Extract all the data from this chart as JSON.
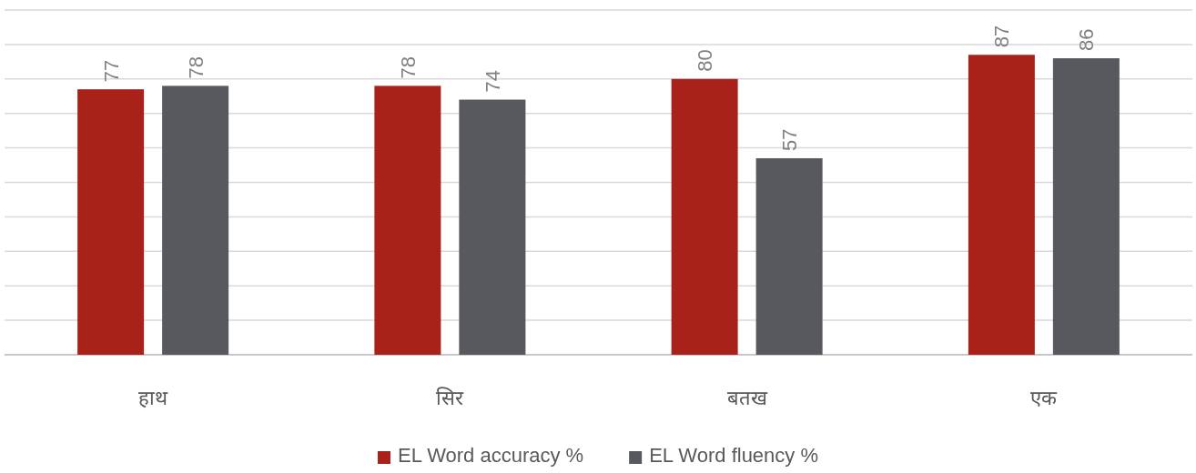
{
  "chart_data": {
    "type": "bar",
    "categories": [
      "हाथ",
      "सिर",
      "बतख",
      "एक"
    ],
    "series": [
      {
        "name": "EL Word accuracy %",
        "color": "#a92219",
        "values": [
          77,
          78,
          80,
          87
        ]
      },
      {
        "name": "EL Word fluency %",
        "color": "#58595e",
        "values": [
          78,
          74,
          57,
          86
        ]
      }
    ],
    "ylim": [
      0,
      100
    ],
    "yticks": [
      {
        "value": 0,
        "label": null
      },
      {
        "value": 10,
        "label": null
      },
      {
        "value": 20,
        "label": null
      },
      {
        "value": 30,
        "label": null
      },
      {
        "value": 40,
        "label": null
      },
      {
        "value": 50,
        "label": null
      },
      {
        "value": 60,
        "label": null
      },
      {
        "value": 70,
        "label": null
      },
      {
        "value": 80,
        "label": null
      },
      {
        "value": 90,
        "label": null
      },
      {
        "value": 100,
        "label": null
      }
    ],
    "tick_labels": "x",
    "grid": "y",
    "legend": "bottom",
    "data_labels": true
  }
}
